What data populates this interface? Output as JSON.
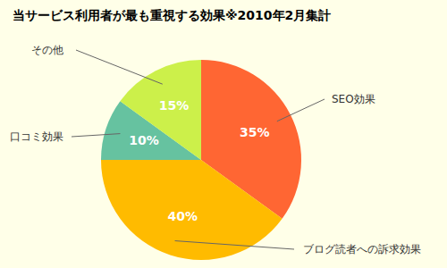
{
  "chart_data": {
    "type": "pie",
    "title": "当サービス利用者が最も重視する効果※2010年2月集計",
    "categories": [
      "SEO効果",
      "ブログ読者への訴求効果",
      "口コミ効果",
      "その他"
    ],
    "values": [
      35,
      40,
      10,
      15
    ],
    "value_labels": [
      "35%",
      "40%",
      "10%",
      "15%"
    ],
    "colors": [
      "#ff6633",
      "#ffbb00",
      "#66c2a0",
      "#ccf04a"
    ],
    "data_labels": true
  }
}
